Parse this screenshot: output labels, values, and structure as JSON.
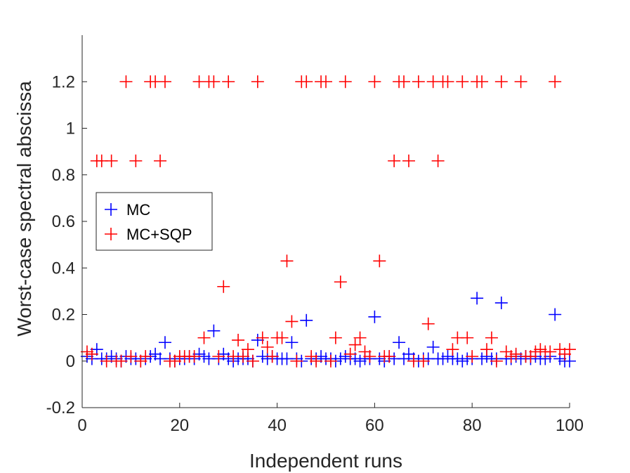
{
  "chart_data": {
    "type": "scatter",
    "title": "",
    "xlabel": "Independent runs",
    "ylabel": "Worst-case spectral abscissa",
    "xlim": [
      0,
      100
    ],
    "ylim": [
      -0.2,
      1.4
    ],
    "xticks": [
      0,
      20,
      40,
      60,
      80,
      100
    ],
    "xtick_labels": [
      "0",
      "20",
      "40",
      "60",
      "80",
      "100"
    ],
    "yticks": [
      -0.2,
      0,
      0.2,
      0.4,
      0.6,
      0.8,
      1,
      1.2
    ],
    "ytick_labels": [
      "-0.2",
      "0",
      "0.2",
      "0.4",
      "0.6",
      "0.8",
      "1",
      "1.2"
    ],
    "grid": false,
    "marker": "+",
    "legend_location": "left, middle",
    "x": [
      1,
      2,
      3,
      4,
      5,
      6,
      7,
      8,
      9,
      10,
      11,
      12,
      13,
      14,
      15,
      16,
      17,
      18,
      19,
      20,
      21,
      22,
      23,
      24,
      25,
      26,
      27,
      28,
      29,
      30,
      31,
      32,
      33,
      34,
      35,
      36,
      37,
      38,
      39,
      40,
      41,
      42,
      43,
      44,
      45,
      46,
      47,
      48,
      49,
      50,
      51,
      52,
      53,
      54,
      55,
      56,
      57,
      58,
      59,
      60,
      61,
      62,
      63,
      64,
      65,
      66,
      67,
      68,
      69,
      70,
      71,
      72,
      73,
      74,
      75,
      76,
      77,
      78,
      79,
      80,
      81,
      82,
      83,
      84,
      85,
      86,
      87,
      88,
      89,
      90,
      91,
      92,
      93,
      94,
      95,
      96,
      97,
      98,
      99,
      100
    ],
    "series": [
      {
        "name": "MC",
        "color": "#0000ff",
        "values": [
          0.02,
          0.01,
          0.05,
          0.01,
          0.01,
          0.02,
          0.01,
          0.0,
          0.02,
          0.01,
          0.01,
          0.0,
          0.01,
          0.02,
          0.03,
          0.01,
          0.08,
          0.01,
          0.0,
          0.01,
          0.01,
          0.02,
          0.01,
          0.03,
          0.02,
          0.01,
          0.13,
          0.01,
          0.03,
          0.01,
          0.0,
          0.01,
          0.01,
          0.01,
          0.0,
          0.09,
          0.02,
          0.01,
          0.02,
          0.01,
          0.01,
          0.01,
          0.08,
          0.01,
          0.0,
          0.175,
          0.01,
          0.01,
          0.02,
          0.01,
          0.01,
          0.0,
          0.01,
          0.02,
          0.01,
          0.01,
          0.0,
          0.01,
          0.01,
          0.19,
          0.01,
          0.0,
          0.02,
          0.01,
          0.08,
          0.01,
          0.03,
          0.01,
          0.0,
          0.01,
          0.01,
          0.06,
          0.01,
          0.01,
          0.02,
          0.01,
          0.01,
          0.0,
          0.01,
          0.01,
          0.27,
          0.01,
          0.02,
          0.01,
          0.01,
          0.25,
          0.01,
          0.01,
          0.02,
          0.01,
          0.02,
          0.01,
          0.02,
          0.01,
          0.01,
          0.02,
          0.2,
          0.01,
          0.0,
          0.0
        ]
      },
      {
        "name": "MC+SQP",
        "color": "#ff0000",
        "values": [
          0.04,
          0.03,
          0.86,
          0.86,
          0.0,
          0.86,
          0.0,
          0.0,
          1.2,
          0.02,
          0.86,
          0.0,
          0.02,
          1.2,
          1.2,
          0.86,
          1.2,
          0.0,
          0.0,
          0.02,
          0.02,
          0.02,
          0.02,
          1.2,
          0.1,
          1.2,
          1.2,
          0.02,
          0.32,
          1.2,
          0.02,
          0.09,
          0.02,
          0.05,
          0.0,
          1.2,
          0.1,
          0.06,
          0.02,
          0.1,
          0.1,
          0.43,
          0.17,
          0.0,
          1.2,
          1.2,
          0.02,
          0.0,
          1.2,
          1.2,
          0.0,
          0.1,
          0.34,
          1.2,
          0.03,
          0.07,
          0.1,
          0.04,
          0.02,
          1.2,
          0.43,
          0.02,
          0.02,
          0.86,
          1.2,
          1.2,
          0.86,
          0.0,
          1.2,
          0.0,
          0.16,
          1.2,
          0.86,
          1.2,
          1.2,
          0.05,
          0.1,
          1.2,
          0.1,
          0.02,
          1.2,
          1.2,
          0.05,
          0.1,
          0.0,
          1.2,
          0.04,
          0.02,
          0.03,
          1.2,
          0.02,
          0.02,
          0.04,
          0.05,
          0.04,
          0.04,
          1.2,
          0.05,
          0.03,
          0.05
        ]
      }
    ]
  }
}
